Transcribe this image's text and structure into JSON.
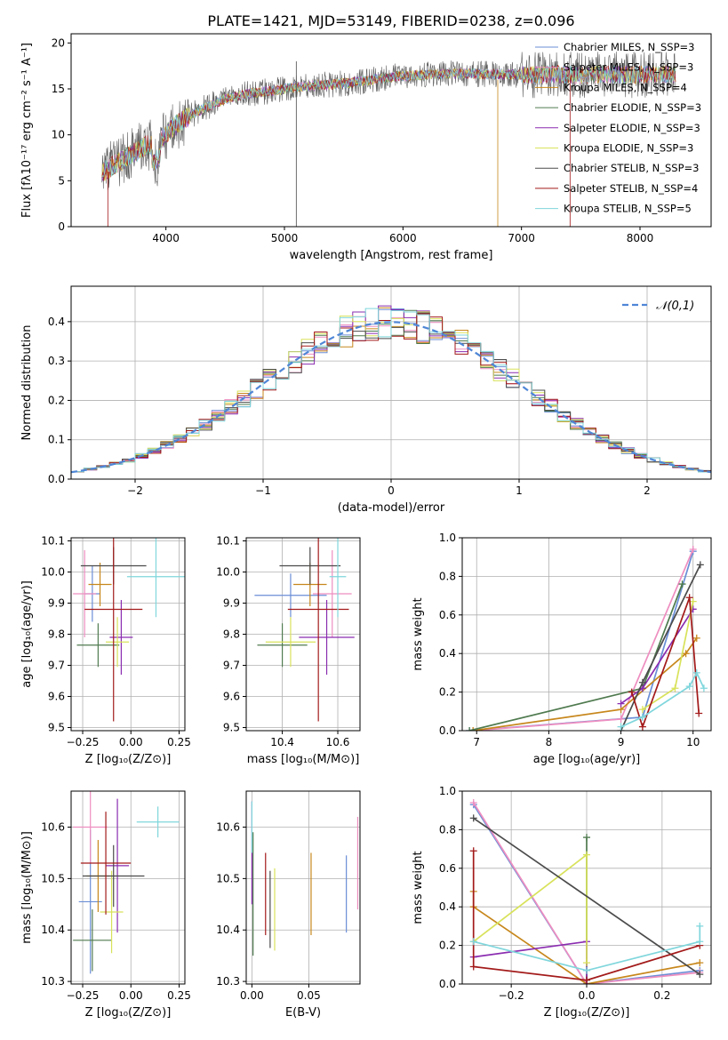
{
  "figure_title": "PLATE=1421, MJD=53149, FIBERID=0238, z=0.096",
  "chart_data": [
    {
      "id": "spectrum",
      "type": "line",
      "xlabel": "wavelength [Angstrom, rest frame]",
      "ylabel": "Flux [fλ10⁻¹⁷ erg cm⁻² s⁻¹ A⁻¹]",
      "xlim": [
        3200,
        8600
      ],
      "ylim": [
        0,
        21
      ],
      "xticks": [
        4000,
        5000,
        6000,
        7000,
        8000
      ],
      "yticks": [
        0,
        5,
        10,
        15,
        20
      ],
      "grid": false,
      "legend_position": "upper-right",
      "continuum_x": [
        3450,
        3600,
        3800,
        3950,
        4100,
        4300,
        4500,
        4700,
        4900,
        5100,
        5300,
        5500,
        5700,
        5900,
        6100,
        6300,
        6500,
        6700,
        6900,
        7100,
        7300,
        7500,
        7700,
        7900,
        8100,
        8300
      ],
      "continuum_y": [
        5.8,
        7.0,
        8.6,
        9.4,
        11.2,
        12.8,
        13.9,
        14.5,
        14.8,
        15.2,
        15.4,
        15.6,
        15.9,
        16.3,
        16.5,
        16.6,
        16.7,
        16.6,
        16.6,
        16.5,
        16.6,
        16.5,
        16.6,
        16.5,
        16.6,
        16.6
      ],
      "series": [
        {
          "name": "Chabrier MILES, N_SSP=3",
          "color": "#6a8ed6"
        },
        {
          "name": "Salpeter MILES, N_SSP=3",
          "color": "#ee8ec0"
        },
        {
          "name": "Kroupa MILES, N_SSP=4",
          "color": "#c7871c"
        },
        {
          "name": "Chabrier ELODIE, N_SSP=3",
          "color": "#4f7a4f"
        },
        {
          "name": "Salpeter ELODIE, N_SSP=3",
          "color": "#8a2cb0"
        },
        {
          "name": "Kroupa ELODIE, N_SSP=3",
          "color": "#d8e25a"
        },
        {
          "name": "Chabrier STELIB, N_SSP=3",
          "color": "#4b4b4b"
        },
        {
          "name": "Salpeter STELIB, N_SSP=4",
          "color": "#a31a1a"
        },
        {
          "name": "Kroupa STELIB, N_SSP=5",
          "color": "#7fd6dc"
        }
      ]
    },
    {
      "id": "residuals",
      "type": "bar",
      "xlabel": "(data-model)/error",
      "ylabel": "Normed distribution",
      "xlim": [
        -2.5,
        2.5
      ],
      "ylim": [
        0,
        0.49
      ],
      "xticks": [
        -2,
        -1,
        0,
        1,
        2
      ],
      "yticks": [
        0.0,
        0.1,
        0.2,
        0.3,
        0.4
      ],
      "grid": true,
      "legend_position": "upper-right",
      "reference_curve": {
        "name": "𝒩(0,1)",
        "color": "#4f86d6",
        "mean": 0,
        "sigma": 1
      },
      "bin_width": 0.1
    },
    {
      "id": "age_vs_Z",
      "type": "scatter",
      "xlabel": "Z [log₁₀(Z/Z⊙)]",
      "ylabel": "age  [log₁₀(age/yr)]",
      "xlim": [
        -0.31,
        0.28
      ],
      "ylim": [
        9.49,
        10.11
      ],
      "xticks": [
        -0.25,
        0.0,
        0.25
      ],
      "yticks": [
        9.5,
        9.6,
        9.7,
        9.8,
        9.9,
        10.0,
        10.1
      ],
      "grid": true,
      "points": [
        {
          "x": -0.2,
          "y": 9.93,
          "xerr": 0.04,
          "yerr": 0.09,
          "series": "Chabrier MILES"
        },
        {
          "x": -0.24,
          "y": 9.93,
          "xerr": 0.06,
          "yerr": 0.14,
          "series": "Salpeter MILES"
        },
        {
          "x": -0.16,
          "y": 9.96,
          "xerr": 0.06,
          "yerr": 0.07,
          "series": "Kroupa MILES"
        },
        {
          "x": -0.17,
          "y": 9.765,
          "xerr": 0.11,
          "yerr": 0.07,
          "series": "Chabrier ELODIE"
        },
        {
          "x": -0.05,
          "y": 9.79,
          "xerr": 0.06,
          "yerr": 0.12,
          "series": "Salpeter ELODIE"
        },
        {
          "x": -0.07,
          "y": 9.775,
          "xerr": 0.06,
          "yerr": 0.08,
          "series": "Kroupa ELODIE"
        },
        {
          "x": -0.09,
          "y": 10.02,
          "xerr": 0.17,
          "yerr": 0.06,
          "series": "Chabrier STELIB"
        },
        {
          "x": -0.09,
          "y": 9.88,
          "xerr": 0.15,
          "yerr": 0.36,
          "series": "Salpeter STELIB"
        },
        {
          "x": 0.13,
          "y": 9.985,
          "xerr": 0.15,
          "yerr": 0.13,
          "series": "Kroupa STELIB"
        }
      ]
    },
    {
      "id": "age_vs_mass",
      "type": "scatter",
      "xlabel": "mass [log₁₀(M/M⊙)]",
      "ylabel": "",
      "xlim": [
        10.27,
        10.68
      ],
      "ylim": [
        9.49,
        10.11
      ],
      "xticks": [
        10.4,
        10.6
      ],
      "yticks": [
        9.5,
        9.6,
        9.7,
        9.8,
        9.9,
        10.0,
        10.1
      ],
      "grid": true,
      "points": [
        {
          "x": 10.43,
          "y": 9.925,
          "xerr": 0.13,
          "yerr": 0.07,
          "series": "Chabrier MILES"
        },
        {
          "x": 10.58,
          "y": 9.93,
          "xerr": 0.07,
          "yerr": 0.14,
          "series": "Salpeter MILES"
        },
        {
          "x": 10.5,
          "y": 9.96,
          "xerr": 0.06,
          "yerr": 0.07,
          "series": "Kroupa MILES"
        },
        {
          "x": 10.4,
          "y": 9.765,
          "xerr": 0.09,
          "yerr": 0.07,
          "series": "Chabrier ELODIE"
        },
        {
          "x": 10.56,
          "y": 9.79,
          "xerr": 0.1,
          "yerr": 0.12,
          "series": "Salpeter ELODIE"
        },
        {
          "x": 10.43,
          "y": 9.775,
          "xerr": 0.09,
          "yerr": 0.08,
          "series": "Kroupa ELODIE"
        },
        {
          "x": 10.5,
          "y": 10.02,
          "xerr": 0.11,
          "yerr": 0.06,
          "series": "Chabrier STELIB"
        },
        {
          "x": 10.53,
          "y": 9.88,
          "xerr": 0.11,
          "yerr": 0.36,
          "series": "Salpeter STELIB"
        },
        {
          "x": 10.6,
          "y": 9.985,
          "xerr": 0.03,
          "yerr": 0.13,
          "series": "Kroupa STELIB"
        }
      ]
    },
    {
      "id": "massweight_vs_age",
      "type": "line",
      "xlabel": "age  [log₁₀(age/yr)]",
      "ylabel": "mass weight",
      "xlim": [
        6.8,
        10.25
      ],
      "ylim": [
        0,
        1.0
      ],
      "xticks": [
        7,
        8,
        9,
        10
      ],
      "yticks": [
        0.0,
        0.2,
        0.4,
        0.6,
        0.8,
        1.0
      ],
      "grid": true,
      "series": [
        {
          "name": "Chabrier MILES",
          "x": [
            6.9,
            9.3,
            10.0
          ],
          "y": [
            0.0,
            0.07,
            0.93
          ]
        },
        {
          "name": "Salpeter MILES",
          "x": [
            6.95,
            9.0,
            10.0
          ],
          "y": [
            0.0,
            0.06,
            0.94
          ]
        },
        {
          "name": "Kroupa MILES",
          "x": [
            6.95,
            9.0,
            9.9,
            10.05
          ],
          "y": [
            0.0,
            0.11,
            0.4,
            0.48
          ]
        },
        {
          "name": "Chabrier ELODIE",
          "x": [
            6.9,
            9.3,
            9.85
          ],
          "y": [
            0.0,
            0.22,
            0.76
          ]
        },
        {
          "name": "Salpeter ELODIE",
          "x": [
            9.0,
            9.3,
            10.0
          ],
          "y": [
            0.14,
            0.22,
            0.63
          ]
        },
        {
          "name": "Kroupa ELODIE",
          "x": [
            9.3,
            9.75,
            10.0
          ],
          "y": [
            0.11,
            0.22,
            0.67
          ]
        },
        {
          "name": "Chabrier STELIB",
          "x": [
            9.0,
            9.3,
            10.1
          ],
          "y": [
            0.0,
            0.25,
            0.86
          ]
        },
        {
          "name": "Salpeter STELIB",
          "x": [
            9.15,
            9.3,
            9.95,
            10.08
          ],
          "y": [
            0.2,
            0.02,
            0.69,
            0.09
          ]
        },
        {
          "name": "Kroupa STELIB",
          "x": [
            9.0,
            9.3,
            9.95,
            10.05,
            10.15
          ],
          "y": [
            0.02,
            0.07,
            0.23,
            0.3,
            0.22
          ]
        }
      ]
    },
    {
      "id": "mass_vs_Z",
      "type": "scatter",
      "xlabel": "Z [log₁₀(Z/Z⊙)]",
      "ylabel": "mass [log₁₀(M/M⊙)]",
      "xlim": [
        -0.31,
        0.28
      ],
      "ylim": [
        10.295,
        10.67
      ],
      "xticks": [
        -0.25,
        0.0,
        0.25
      ],
      "yticks": [
        10.3,
        10.4,
        10.5,
        10.6
      ],
      "grid": true,
      "points": [
        {
          "x": -0.21,
          "y": 10.455,
          "xerr": 0.06,
          "yerr": 0.14,
          "series": "Chabrier MILES"
        },
        {
          "x": -0.21,
          "y": 10.6,
          "xerr": 0.09,
          "yerr": 0.07,
          "series": "Salpeter MILES"
        },
        {
          "x": -0.17,
          "y": 10.505,
          "xerr": 0.06,
          "yerr": 0.07,
          "series": "Kroupa MILES"
        },
        {
          "x": -0.2,
          "y": 10.38,
          "xerr": 0.1,
          "yerr": 0.06,
          "series": "Chabrier ELODIE"
        },
        {
          "x": -0.07,
          "y": 10.525,
          "xerr": 0.06,
          "yerr": 0.13,
          "series": "Salpeter ELODIE"
        },
        {
          "x": -0.1,
          "y": 10.435,
          "xerr": 0.06,
          "yerr": 0.08,
          "series": "Kroupa ELODIE"
        },
        {
          "x": -0.09,
          "y": 10.505,
          "xerr": 0.16,
          "yerr": 0.06,
          "series": "Chabrier STELIB"
        },
        {
          "x": -0.13,
          "y": 10.53,
          "xerr": 0.13,
          "yerr": 0.1,
          "series": "Salpeter STELIB"
        },
        {
          "x": 0.14,
          "y": 10.61,
          "xerr": 0.11,
          "yerr": 0.03,
          "series": "Kroupa STELIB"
        }
      ]
    },
    {
      "id": "mass_vs_ebv",
      "type": "scatter",
      "xlabel": "E(B-V)",
      "ylabel": "",
      "xlim": [
        -0.005,
        0.095
      ],
      "ylim": [
        10.295,
        10.67
      ],
      "xticks": [
        0.0,
        0.05
      ],
      "yticks": [
        10.3,
        10.4,
        10.5,
        10.6
      ],
      "grid": true,
      "points": [
        {
          "x": 0.083,
          "y": 10.47,
          "xerr": 0.0,
          "yerr": 0.075,
          "series": "Chabrier MILES"
        },
        {
          "x": 0.093,
          "y": 10.53,
          "xerr": 0.0,
          "yerr": 0.09,
          "series": "Salpeter MILES"
        },
        {
          "x": 0.052,
          "y": 10.47,
          "xerr": 0.0,
          "yerr": 0.08,
          "series": "Kroupa MILES"
        },
        {
          "x": 0.001,
          "y": 10.47,
          "xerr": 0.0,
          "yerr": 0.12,
          "series": "Chabrier ELODIE"
        },
        {
          "x": 0.0,
          "y": 10.55,
          "xerr": 0.0,
          "yerr": 0.1,
          "series": "Salpeter ELODIE"
        },
        {
          "x": 0.02,
          "y": 10.44,
          "xerr": 0.0,
          "yerr": 0.08,
          "series": "Kroupa ELODIE"
        },
        {
          "x": 0.016,
          "y": 10.44,
          "xerr": 0.0,
          "yerr": 0.075,
          "series": "Chabrier STELIB"
        },
        {
          "x": 0.012,
          "y": 10.47,
          "xerr": 0.0,
          "yerr": 0.08,
          "series": "Salpeter STELIB"
        },
        {
          "x": 0.0,
          "y": 10.6,
          "xerr": 0.0,
          "yerr": 0.05,
          "series": "Kroupa STELIB"
        }
      ]
    },
    {
      "id": "massweight_vs_Z",
      "type": "line",
      "xlabel": "Z [log₁₀(Z/Z⊙)]",
      "ylabel": "mass weight",
      "xlim": [
        -0.33,
        0.33
      ],
      "ylim": [
        0,
        1.0
      ],
      "xticks": [
        -0.2,
        0.0,
        0.2
      ],
      "yticks": [
        0.0,
        0.2,
        0.4,
        0.6,
        0.8,
        1.0
      ],
      "grid": true,
      "series": [
        {
          "name": "Chabrier MILES",
          "x": [
            -0.3,
            0.0,
            0.3
          ],
          "y": [
            0.93,
            0.0,
            0.07
          ]
        },
        {
          "name": "Salpeter MILES",
          "x": [
            -0.3,
            0.0,
            0.3
          ],
          "y": [
            0.94,
            0.0,
            0.06
          ]
        },
        {
          "name": "Kroupa MILES",
          "x": [
            -0.3,
            -0.3,
            0.0,
            0.3
          ],
          "y": [
            0.48,
            0.4,
            0.0,
            0.11
          ]
        },
        {
          "name": "Chabrier ELODIE",
          "x": [
            0.0,
            0.0
          ],
          "y": [
            0.76,
            0.02
          ]
        },
        {
          "name": "Salpeter ELODIE",
          "x": [
            -0.3,
            0.0,
            0.0
          ],
          "y": [
            0.14,
            0.22,
            0.0
          ]
        },
        {
          "name": "Kroupa ELODIE",
          "x": [
            -0.3,
            0.0,
            0.0
          ],
          "y": [
            0.22,
            0.67,
            0.11
          ]
        },
        {
          "name": "Chabrier STELIB",
          "x": [
            -0.3,
            0.3
          ],
          "y": [
            0.86,
            0.05
          ]
        },
        {
          "name": "Salpeter STELIB",
          "x": [
            -0.3,
            -0.3,
            0.0,
            0.3
          ],
          "y": [
            0.69,
            0.09,
            0.02,
            0.2
          ]
        },
        {
          "name": "Kroupa STELIB",
          "x": [
            -0.3,
            0.0,
            0.3,
            0.3
          ],
          "y": [
            0.22,
            0.07,
            0.22,
            0.3
          ]
        }
      ]
    }
  ]
}
